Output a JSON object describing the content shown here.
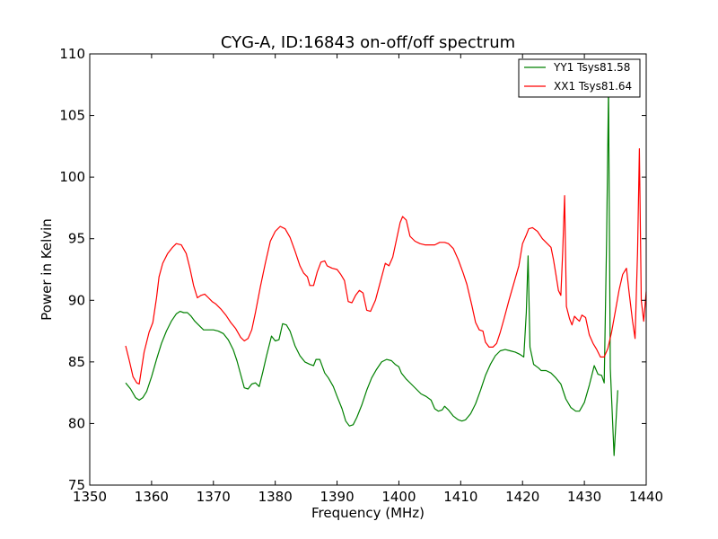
{
  "chart_data": {
    "type": "line",
    "title": "CYG-A, ID:16843 on-off/off spectrum",
    "xlabel": "Frequency (MHz)",
    "ylabel": "Power in Kelvin",
    "xlim": [
      1350,
      1440
    ],
    "ylim": [
      75,
      110
    ],
    "xticks": [
      1350,
      1360,
      1370,
      1380,
      1390,
      1400,
      1410,
      1420,
      1430,
      1440
    ],
    "yticks": [
      75,
      80,
      85,
      90,
      95,
      100,
      105,
      110
    ],
    "grid": false,
    "legend_position": "top-right",
    "series": [
      {
        "name": "YY1 Tsys81.58",
        "color": "#008000",
        "points": [
          [
            1355.8,
            83.3
          ],
          [
            1356.6,
            82.8
          ],
          [
            1357.4,
            82.1
          ],
          [
            1358.0,
            81.9
          ],
          [
            1358.6,
            82.1
          ],
          [
            1359.2,
            82.6
          ],
          [
            1360.0,
            83.8
          ],
          [
            1360.8,
            85.2
          ],
          [
            1361.6,
            86.5
          ],
          [
            1362.4,
            87.5
          ],
          [
            1363.2,
            88.3
          ],
          [
            1364.0,
            88.9
          ],
          [
            1364.6,
            89.1
          ],
          [
            1365.2,
            89.0
          ],
          [
            1365.8,
            89.0
          ],
          [
            1366.4,
            88.7
          ],
          [
            1367.0,
            88.3
          ],
          [
            1367.8,
            87.9
          ],
          [
            1368.4,
            87.6
          ],
          [
            1369.2,
            87.6
          ],
          [
            1370.0,
            87.6
          ],
          [
            1370.8,
            87.5
          ],
          [
            1371.6,
            87.3
          ],
          [
            1372.4,
            86.8
          ],
          [
            1373.2,
            86.0
          ],
          [
            1373.8,
            85.1
          ],
          [
            1374.4,
            84.0
          ],
          [
            1375.0,
            82.9
          ],
          [
            1375.6,
            82.8
          ],
          [
            1376.2,
            83.2
          ],
          [
            1376.8,
            83.3
          ],
          [
            1377.4,
            83.0
          ],
          [
            1378.0,
            84.2
          ],
          [
            1378.6,
            85.5
          ],
          [
            1379.4,
            87.1
          ],
          [
            1380.0,
            86.7
          ],
          [
            1380.6,
            86.8
          ],
          [
            1381.2,
            88.1
          ],
          [
            1381.8,
            88.0
          ],
          [
            1382.4,
            87.5
          ],
          [
            1383.2,
            86.3
          ],
          [
            1384.0,
            85.5
          ],
          [
            1384.8,
            85.0
          ],
          [
            1385.6,
            84.8
          ],
          [
            1386.2,
            84.7
          ],
          [
            1386.6,
            85.2
          ],
          [
            1387.2,
            85.2
          ],
          [
            1388.0,
            84.1
          ],
          [
            1388.6,
            83.7
          ],
          [
            1389.4,
            83.0
          ],
          [
            1390.0,
            82.2
          ],
          [
            1390.8,
            81.2
          ],
          [
            1391.4,
            80.2
          ],
          [
            1392.0,
            79.8
          ],
          [
            1392.6,
            79.9
          ],
          [
            1393.2,
            80.5
          ],
          [
            1394.0,
            81.5
          ],
          [
            1394.8,
            82.7
          ],
          [
            1395.6,
            83.7
          ],
          [
            1396.4,
            84.4
          ],
          [
            1397.2,
            85.0
          ],
          [
            1398.0,
            85.2
          ],
          [
            1398.8,
            85.1
          ],
          [
            1399.4,
            84.8
          ],
          [
            1400.0,
            84.6
          ],
          [
            1400.4,
            84.1
          ],
          [
            1401.2,
            83.6
          ],
          [
            1402.0,
            83.2
          ],
          [
            1402.8,
            82.8
          ],
          [
            1403.6,
            82.4
          ],
          [
            1404.4,
            82.2
          ],
          [
            1405.2,
            81.9
          ],
          [
            1405.8,
            81.2
          ],
          [
            1406.4,
            81.0
          ],
          [
            1407.0,
            81.1
          ],
          [
            1407.4,
            81.4
          ],
          [
            1408.0,
            81.1
          ],
          [
            1408.8,
            80.6
          ],
          [
            1409.6,
            80.3
          ],
          [
            1410.2,
            80.2
          ],
          [
            1410.8,
            80.3
          ],
          [
            1411.6,
            80.8
          ],
          [
            1412.4,
            81.6
          ],
          [
            1413.2,
            82.7
          ],
          [
            1414.0,
            83.9
          ],
          [
            1414.8,
            84.8
          ],
          [
            1415.6,
            85.5
          ],
          [
            1416.4,
            85.9
          ],
          [
            1417.2,
            86.0
          ],
          [
            1418.0,
            85.9
          ],
          [
            1418.8,
            85.8
          ],
          [
            1419.6,
            85.6
          ],
          [
            1420.2,
            85.4
          ],
          [
            1420.6,
            89.0
          ],
          [
            1420.9,
            93.6
          ],
          [
            1421.2,
            86.2
          ],
          [
            1421.8,
            84.8
          ],
          [
            1422.6,
            84.5
          ],
          [
            1423.0,
            84.3
          ],
          [
            1423.8,
            84.3
          ],
          [
            1424.6,
            84.1
          ],
          [
            1425.4,
            83.7
          ],
          [
            1426.2,
            83.2
          ],
          [
            1427.0,
            82.0
          ],
          [
            1427.8,
            81.3
          ],
          [
            1428.6,
            81.0
          ],
          [
            1429.2,
            81.0
          ],
          [
            1430.0,
            81.7
          ],
          [
            1430.8,
            83.1
          ],
          [
            1431.6,
            84.7
          ],
          [
            1432.2,
            84.0
          ],
          [
            1432.8,
            83.9
          ],
          [
            1433.2,
            83.3
          ],
          [
            1433.6,
            95.0
          ],
          [
            1433.9,
            107.2
          ],
          [
            1434.2,
            84.5
          ],
          [
            1434.8,
            77.4
          ],
          [
            1435.4,
            82.7
          ]
        ]
      },
      {
        "name": "XX1 Tsys81.64",
        "color": "#ff0000",
        "points": [
          [
            1355.8,
            86.3
          ],
          [
            1356.4,
            85.1
          ],
          [
            1357.0,
            83.8
          ],
          [
            1357.6,
            83.3
          ],
          [
            1358.0,
            83.2
          ],
          [
            1358.8,
            85.8
          ],
          [
            1359.6,
            87.4
          ],
          [
            1360.2,
            88.2
          ],
          [
            1360.8,
            90.2
          ],
          [
            1361.2,
            91.9
          ],
          [
            1361.8,
            93.0
          ],
          [
            1362.6,
            93.8
          ],
          [
            1363.4,
            94.3
          ],
          [
            1364.0,
            94.6
          ],
          [
            1364.8,
            94.5
          ],
          [
            1365.6,
            93.8
          ],
          [
            1366.2,
            92.6
          ],
          [
            1366.8,
            91.2
          ],
          [
            1367.4,
            90.2
          ],
          [
            1368.0,
            90.4
          ],
          [
            1368.6,
            90.5
          ],
          [
            1369.2,
            90.2
          ],
          [
            1369.8,
            89.9
          ],
          [
            1370.4,
            89.7
          ],
          [
            1371.2,
            89.3
          ],
          [
            1372.0,
            88.8
          ],
          [
            1372.8,
            88.2
          ],
          [
            1373.6,
            87.7
          ],
          [
            1374.4,
            87.0
          ],
          [
            1375.0,
            86.7
          ],
          [
            1375.6,
            86.9
          ],
          [
            1376.2,
            87.6
          ],
          [
            1376.8,
            89.0
          ],
          [
            1377.6,
            91.1
          ],
          [
            1378.4,
            93.0
          ],
          [
            1379.2,
            94.8
          ],
          [
            1380.0,
            95.6
          ],
          [
            1380.8,
            96.0
          ],
          [
            1381.6,
            95.8
          ],
          [
            1382.4,
            95.1
          ],
          [
            1383.2,
            94.0
          ],
          [
            1384.0,
            92.8
          ],
          [
            1384.6,
            92.2
          ],
          [
            1385.2,
            91.9
          ],
          [
            1385.6,
            91.2
          ],
          [
            1386.2,
            91.2
          ],
          [
            1386.8,
            92.3
          ],
          [
            1387.4,
            93.1
          ],
          [
            1388.0,
            93.2
          ],
          [
            1388.4,
            92.8
          ],
          [
            1389.2,
            92.6
          ],
          [
            1390.0,
            92.5
          ],
          [
            1390.6,
            92.1
          ],
          [
            1391.2,
            91.6
          ],
          [
            1391.8,
            89.9
          ],
          [
            1392.4,
            89.8
          ],
          [
            1393.0,
            90.4
          ],
          [
            1393.6,
            90.8
          ],
          [
            1394.2,
            90.6
          ],
          [
            1394.8,
            89.2
          ],
          [
            1395.4,
            89.1
          ],
          [
            1396.2,
            90.0
          ],
          [
            1397.0,
            91.5
          ],
          [
            1397.8,
            93.0
          ],
          [
            1398.4,
            92.8
          ],
          [
            1399.0,
            93.5
          ],
          [
            1399.6,
            94.9
          ],
          [
            1400.2,
            96.3
          ],
          [
            1400.6,
            96.8
          ],
          [
            1401.2,
            96.5
          ],
          [
            1401.8,
            95.2
          ],
          [
            1402.6,
            94.8
          ],
          [
            1403.4,
            94.6
          ],
          [
            1404.2,
            94.5
          ],
          [
            1405.0,
            94.5
          ],
          [
            1405.8,
            94.5
          ],
          [
            1406.6,
            94.7
          ],
          [
            1407.4,
            94.7
          ],
          [
            1408.0,
            94.6
          ],
          [
            1408.8,
            94.2
          ],
          [
            1409.6,
            93.3
          ],
          [
            1410.4,
            92.2
          ],
          [
            1411.0,
            91.3
          ],
          [
            1411.8,
            89.6
          ],
          [
            1412.4,
            88.2
          ],
          [
            1413.0,
            87.6
          ],
          [
            1413.6,
            87.5
          ],
          [
            1414.0,
            86.6
          ],
          [
            1414.6,
            86.2
          ],
          [
            1415.2,
            86.2
          ],
          [
            1415.8,
            86.5
          ],
          [
            1416.4,
            87.4
          ],
          [
            1417.0,
            88.5
          ],
          [
            1417.8,
            90.0
          ],
          [
            1418.6,
            91.4
          ],
          [
            1419.4,
            92.8
          ],
          [
            1420.0,
            94.6
          ],
          [
            1420.6,
            95.3
          ],
          [
            1421.0,
            95.8
          ],
          [
            1421.6,
            95.9
          ],
          [
            1422.4,
            95.6
          ],
          [
            1423.2,
            95.0
          ],
          [
            1424.0,
            94.6
          ],
          [
            1424.6,
            94.3
          ],
          [
            1425.0,
            93.3
          ],
          [
            1425.4,
            92.1
          ],
          [
            1425.8,
            90.8
          ],
          [
            1426.2,
            90.4
          ],
          [
            1426.5,
            94.0
          ],
          [
            1426.8,
            98.5
          ],
          [
            1427.1,
            89.5
          ],
          [
            1427.6,
            88.5
          ],
          [
            1428.0,
            88.0
          ],
          [
            1428.4,
            88.7
          ],
          [
            1428.8,
            88.5
          ],
          [
            1429.2,
            88.3
          ],
          [
            1429.6,
            88.8
          ],
          [
            1430.2,
            88.6
          ],
          [
            1430.8,
            87.2
          ],
          [
            1431.4,
            86.5
          ],
          [
            1432.0,
            86.0
          ],
          [
            1432.6,
            85.4
          ],
          [
            1433.2,
            85.4
          ],
          [
            1433.8,
            86.1
          ],
          [
            1434.4,
            87.4
          ],
          [
            1435.0,
            89.1
          ],
          [
            1435.6,
            90.8
          ],
          [
            1436.2,
            92.1
          ],
          [
            1436.8,
            92.6
          ],
          [
            1437.2,
            90.8
          ],
          [
            1437.8,
            88.3
          ],
          [
            1438.2,
            86.9
          ],
          [
            1438.6,
            94.0
          ],
          [
            1438.9,
            102.3
          ],
          [
            1439.2,
            90.0
          ],
          [
            1439.6,
            88.3
          ],
          [
            1440.0,
            90.7
          ]
        ]
      }
    ]
  }
}
